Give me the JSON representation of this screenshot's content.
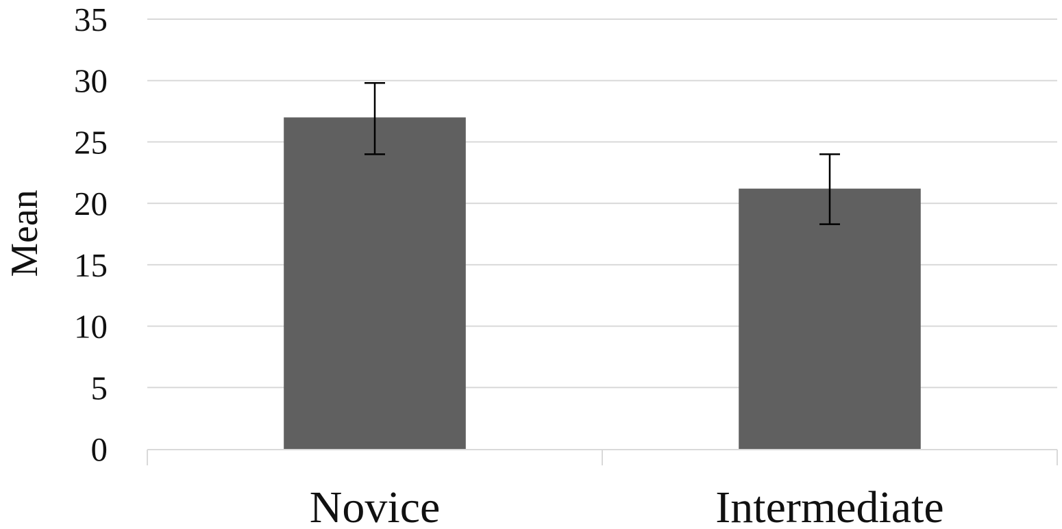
{
  "chart_data": {
    "type": "bar",
    "categories": [
      "Novice",
      "Intermediate"
    ],
    "values": [
      27,
      21.2
    ],
    "error_bars": [
      {
        "lower": 24,
        "upper": 29.8
      },
      {
        "lower": 18.3,
        "upper": 24
      }
    ],
    "title": "",
    "xlabel": "",
    "ylabel": "Mean",
    "ylim": [
      0,
      35
    ],
    "yticks": [
      0,
      5,
      10,
      15,
      20,
      25,
      30,
      35
    ],
    "ytick_labels": [
      "0",
      "5",
      "10",
      "15",
      "20",
      "25",
      "30",
      "35"
    ],
    "grid": "horizontal",
    "legend": "none",
    "colors": {
      "bar": "#606060",
      "grid": "#d9d9d9",
      "axis": "#d9d9d9",
      "error_bar": "#000000",
      "text": "#111111"
    }
  }
}
